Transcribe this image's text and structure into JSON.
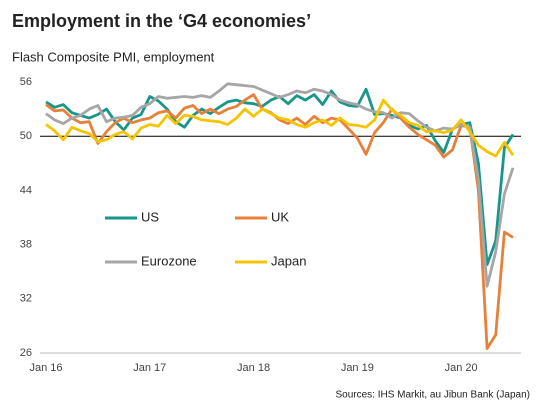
{
  "chart_data": {
    "type": "line",
    "title": "Employment in the ‘G4 economies’",
    "subtitle": "Flash Composite PMI, employment",
    "source": "Sources: IHS Markit, au Jibun Bank (Japan)",
    "categories": [
      "Jan 16",
      null,
      null,
      null,
      null,
      null,
      null,
      null,
      null,
      null,
      null,
      null,
      "Jan 17",
      null,
      null,
      null,
      null,
      null,
      null,
      null,
      null,
      null,
      null,
      null,
      "Jan 18",
      null,
      null,
      null,
      null,
      null,
      null,
      null,
      null,
      null,
      null,
      null,
      "Jan 19",
      null,
      null,
      null,
      null,
      null,
      null,
      null,
      null,
      null,
      null,
      null,
      "Jan 20",
      null,
      null,
      null,
      null,
      null,
      null
    ],
    "ylim": [
      26,
      56
    ],
    "yticks": [
      26,
      32,
      38,
      44,
      50,
      56
    ],
    "reference_line": 50,
    "grid": false,
    "series": [
      {
        "name": "US",
        "color": "#17968a",
        "values": [
          53.8,
          53.2,
          53.5,
          52.6,
          52.3,
          52.0,
          52.4,
          53.0,
          51.6,
          50.7,
          52.0,
          52.4,
          54.4,
          53.9,
          53.0,
          51.6,
          51.0,
          52.3,
          53.0,
          52.5,
          53.2,
          53.8,
          54.0,
          53.7,
          53.6,
          53.3,
          54.0,
          54.4,
          53.6,
          54.5,
          54.0,
          54.6,
          53.5,
          55.0,
          53.8,
          53.4,
          53.3,
          55.2,
          52.4,
          52.5,
          52.3,
          52.0,
          51.2,
          50.8,
          51.2,
          49.5,
          48.2,
          50.8,
          51.3,
          51.5,
          47.0,
          35.8,
          38.4,
          48.7,
          50.2
        ]
      },
      {
        "name": "UK",
        "color": "#e8803a",
        "values": [
          53.5,
          52.8,
          52.9,
          52.0,
          51.5,
          51.6,
          49.2,
          50.5,
          51.5,
          52.0,
          51.5,
          51.8,
          52.0,
          52.6,
          52.8,
          52.0,
          53.1,
          53.4,
          52.5,
          53.0,
          52.5,
          53.0,
          53.3,
          54.0,
          54.6,
          53.0,
          52.6,
          51.8,
          51.4,
          52.0,
          51.3,
          52.2,
          51.5,
          52.0,
          51.8,
          50.8,
          49.8,
          48.0,
          50.4,
          51.5,
          53.0,
          52.0,
          51.0,
          50.2,
          49.6,
          49.0,
          47.7,
          48.5,
          51.2,
          51.0,
          44.0,
          26.5,
          28.0,
          39.4,
          38.8
        ]
      },
      {
        "name": "Eurozone",
        "color": "#a6a6a6",
        "values": [
          52.5,
          51.8,
          51.4,
          52.0,
          52.3,
          53.0,
          53.4,
          51.6,
          52.0,
          52.1,
          52.3,
          53.2,
          53.6,
          54.4,
          54.2,
          54.3,
          54.4,
          54.3,
          54.5,
          54.3,
          55.0,
          55.8,
          55.7,
          55.6,
          55.5,
          55.1,
          54.7,
          54.3,
          54.6,
          55.0,
          54.8,
          55.2,
          55.0,
          54.6,
          54.0,
          53.7,
          53.5,
          53.0,
          52.7,
          52.6,
          52.0,
          52.6,
          52.5,
          51.7,
          51.0,
          50.6,
          50.9,
          50.8,
          51.3,
          51.0,
          45.2,
          33.4,
          37.2,
          43.6,
          46.5
        ]
      },
      {
        "name": "Japan",
        "color": "#f5c400",
        "values": [
          51.3,
          50.6,
          49.6,
          51.0,
          50.6,
          50.3,
          49.4,
          49.6,
          50.2,
          50.5,
          49.7,
          50.9,
          51.3,
          51.1,
          52.3,
          51.4,
          52.3,
          52.2,
          51.8,
          51.7,
          51.6,
          51.3,
          52.0,
          53.0,
          52.2,
          53.0,
          52.5,
          52.0,
          51.8,
          51.3,
          51.0,
          51.5,
          51.8,
          51.2,
          52.0,
          51.3,
          51.2,
          51.0,
          51.8,
          54.0,
          52.9,
          52.3,
          51.5,
          51.2,
          50.5,
          50.6,
          50.4,
          50.7,
          51.8,
          50.5,
          49.0,
          48.3,
          47.8,
          49.3,
          47.9
        ]
      }
    ]
  }
}
